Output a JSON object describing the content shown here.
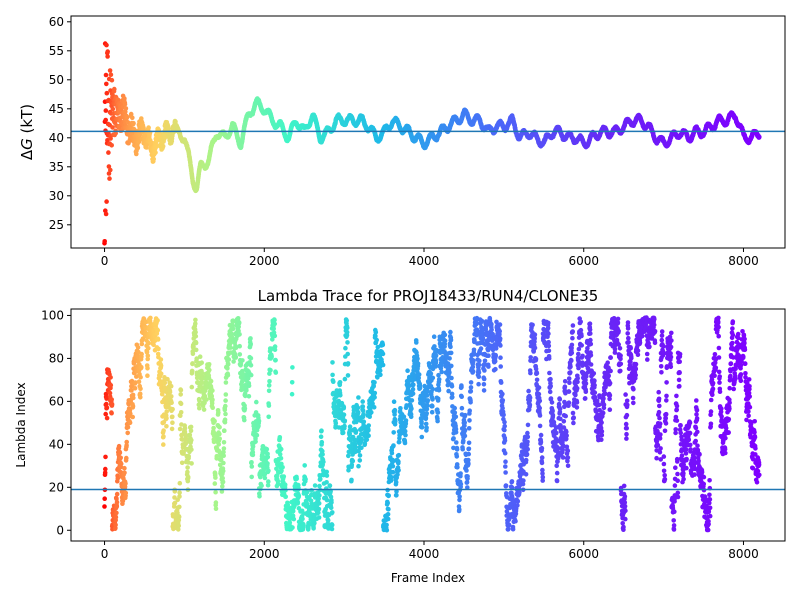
{
  "chart_data": [
    {
      "type": "scatter",
      "title": "",
      "xlabel": "",
      "ylabel": "ΔG (kT)",
      "ylabel_parts": {
        "symbol": "ΔG",
        "italic": "G",
        "unit": "(kT)"
      },
      "xlim": [
        -420,
        8520
      ],
      "ylim": [
        21,
        61
      ],
      "xticks": [
        0,
        2000,
        4000,
        6000,
        8000
      ],
      "yticks": [
        25,
        30,
        35,
        40,
        45,
        50,
        55,
        60
      ],
      "hline": 41.1,
      "color_encoding": "frame index, rainbow colormap (reversed)",
      "trace_knots": [
        [
          0,
          41
        ],
        [
          100,
          44
        ],
        [
          200,
          44
        ],
        [
          300,
          42
        ],
        [
          400,
          40
        ],
        [
          500,
          41
        ],
        [
          600,
          38
        ],
        [
          700,
          40
        ],
        [
          800,
          41
        ],
        [
          900,
          41
        ],
        [
          1000,
          40
        ],
        [
          1060,
          36
        ],
        [
          1100,
          33
        ],
        [
          1150,
          31
        ],
        [
          1200,
          35
        ],
        [
          1300,
          36
        ],
        [
          1400,
          41
        ],
        [
          1500,
          40
        ],
        [
          1600,
          42
        ],
        [
          1700,
          39
        ],
        [
          1800,
          44
        ],
        [
          1900,
          46
        ],
        [
          2000,
          45
        ],
        [
          2100,
          43
        ],
        [
          2200,
          42
        ],
        [
          2300,
          40
        ],
        [
          2400,
          43
        ],
        [
          2500,
          41
        ],
        [
          2600,
          44
        ],
        [
          2700,
          40
        ],
        [
          2800,
          41
        ],
        [
          2900,
          43
        ],
        [
          3000,
          43
        ],
        [
          3200,
          43
        ],
        [
          3300,
          42
        ],
        [
          3400,
          40
        ],
        [
          3500,
          41
        ],
        [
          3600,
          43
        ],
        [
          3700,
          42
        ],
        [
          3800,
          41
        ],
        [
          3900,
          40
        ],
        [
          4000,
          39
        ],
        [
          4100,
          40
        ],
        [
          4200,
          41
        ],
        [
          4300,
          42
        ],
        [
          4400,
          43
        ],
        [
          4500,
          44
        ],
        [
          4600,
          43
        ],
        [
          4700,
          43
        ],
        [
          4800,
          41
        ],
        [
          4900,
          42
        ],
        [
          5000,
          42
        ],
        [
          5100,
          43
        ],
        [
          5200,
          40
        ],
        [
          5300,
          41
        ],
        [
          5400,
          40
        ],
        [
          5500,
          39
        ],
        [
          5600,
          41
        ],
        [
          5700,
          41
        ],
        [
          5800,
          40
        ],
        [
          5900,
          40
        ],
        [
          6000,
          39
        ],
        [
          6100,
          40
        ],
        [
          6200,
          41
        ],
        [
          6400,
          41
        ],
        [
          6500,
          42
        ],
        [
          6600,
          43
        ],
        [
          6700,
          43
        ],
        [
          6800,
          42
        ],
        [
          6900,
          40
        ],
        [
          7000,
          39
        ],
        [
          7100,
          40
        ],
        [
          7200,
          41
        ],
        [
          7300,
          40
        ],
        [
          7400,
          41
        ],
        [
          7500,
          41
        ],
        [
          7600,
          42
        ],
        [
          7700,
          43
        ],
        [
          7800,
          43
        ],
        [
          7900,
          44
        ],
        [
          8000,
          40
        ],
        [
          8100,
          40
        ],
        [
          8200,
          41
        ]
      ],
      "early_noise_amplitude": 20
    },
    {
      "type": "scatter",
      "title": "Lambda Trace for PROJ18433/RUN4/CLONE35",
      "xlabel": "Frame Index",
      "ylabel": "Lambda Index",
      "xlim": [
        -420,
        8520
      ],
      "ylim": [
        -5,
        103
      ],
      "xticks": [
        0,
        2000,
        4000,
        6000,
        8000
      ],
      "yticks": [
        0,
        20,
        40,
        60,
        80,
        100
      ],
      "hline": 19,
      "lambda_range": [
        0,
        99
      ],
      "frames": 8200,
      "color_encoding": "frame index, rainbow colormap (reversed)"
    }
  ],
  "colors": {
    "axis": "#000000",
    "hline": "#1f77b4",
    "colormap_stops": [
      "#ff0000",
      "#ff7f3f",
      "#ffd15f",
      "#a8f58a",
      "#40f5c8",
      "#1fb9e8",
      "#4a6bf8",
      "#6a23f6",
      "#7f00ff"
    ]
  }
}
